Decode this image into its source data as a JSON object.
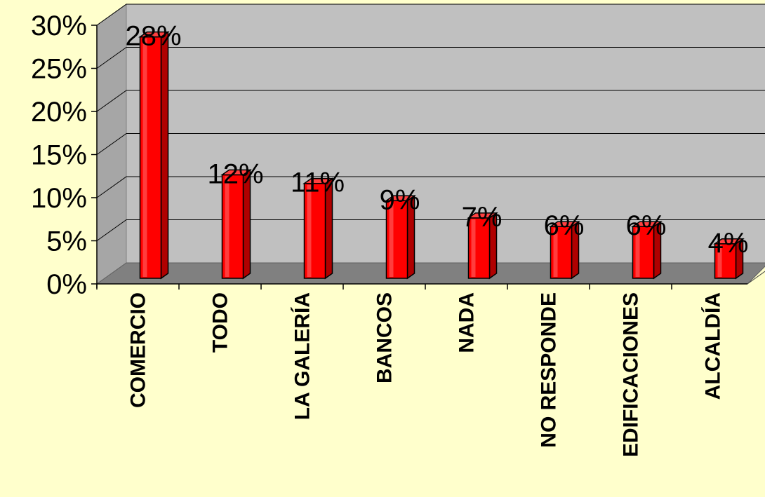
{
  "chart_data": {
    "type": "bar",
    "categories": [
      "COMERCIO",
      "TODO",
      "LA GALERÍA",
      "BANCOS",
      "NADA",
      "NO RESPONDE",
      "EDIFICACIONES",
      "ALCALDÍA"
    ],
    "values": [
      28,
      12,
      11,
      9,
      7,
      6,
      6,
      4
    ],
    "value_labels": [
      "28%",
      "12%",
      "11%",
      "9%",
      "7%",
      "6%",
      "6%",
      "4%"
    ],
    "y_ticks": [
      0,
      5,
      10,
      15,
      20,
      25,
      30
    ],
    "y_tick_labels": [
      "0%",
      "5%",
      "10%",
      "15%",
      "20%",
      "25%",
      "30%"
    ],
    "ylim": [
      0,
      30
    ],
    "grid": true,
    "legend": "none",
    "bar_color": "#ff0000",
    "wall_color": "#c0c0c0",
    "floor_color": "#808080",
    "background_color": "#ffffcc"
  }
}
